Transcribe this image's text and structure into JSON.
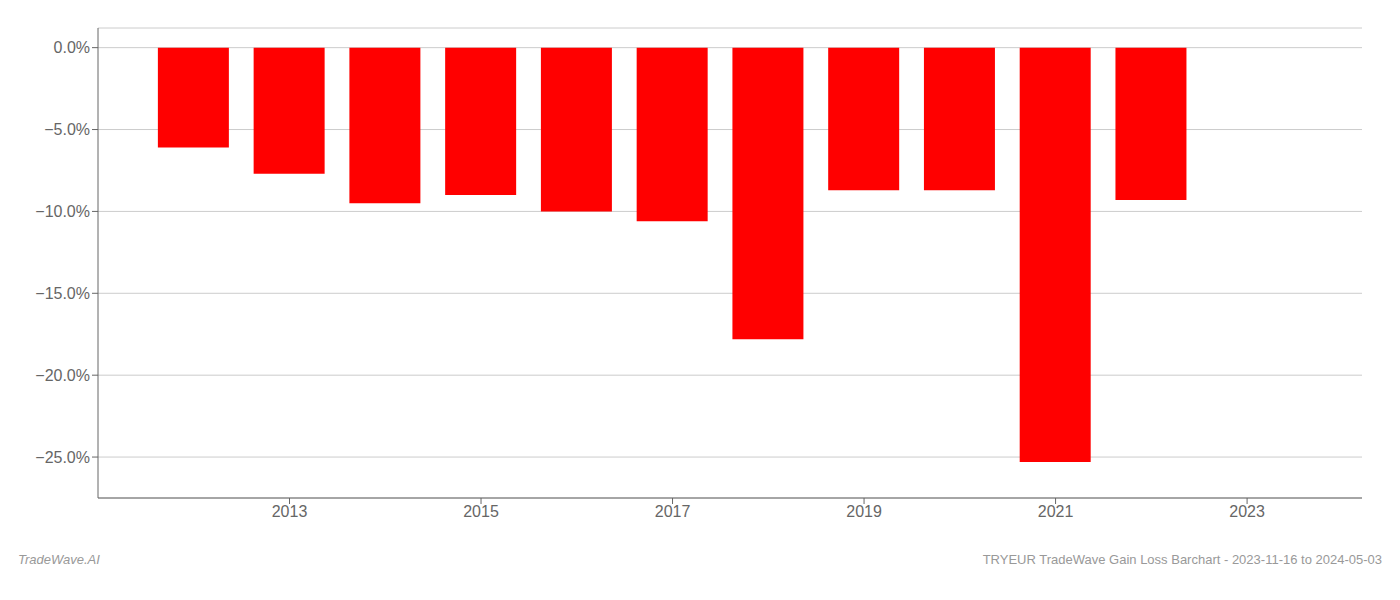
{
  "chart_data": {
    "type": "bar",
    "x": [
      2012,
      2013,
      2014,
      2015,
      2016,
      2017,
      2018,
      2019,
      2020,
      2021,
      2022
    ],
    "values": [
      -6.1,
      -7.7,
      -9.5,
      -9.0,
      -10.0,
      -10.6,
      -17.8,
      -8.7,
      -8.7,
      -25.3,
      -9.3
    ],
    "color": "#ff0000",
    "xlim": [
      2011.0,
      2024.2
    ],
    "xticks": [
      2013,
      2015,
      2017,
      2019,
      2021,
      2023
    ],
    "ylim": [
      -27.5,
      1.2
    ],
    "yticks": [
      {
        "value": 0.0,
        "label": "0.0%"
      },
      {
        "value": -5.0,
        "label": "−5.0%"
      },
      {
        "value": -10.0,
        "label": "−10.0%"
      },
      {
        "value": -15.0,
        "label": "−15.0%"
      },
      {
        "value": -20.0,
        "label": "−20.0%"
      },
      {
        "value": -25.0,
        "label": "−25.0%"
      }
    ],
    "grid": true,
    "annotations": [
      "TradeWave.AI",
      "TRYEUR TradeWave Gain Loss Barchart - 2023-11-16 to 2024-05-03"
    ]
  }
}
